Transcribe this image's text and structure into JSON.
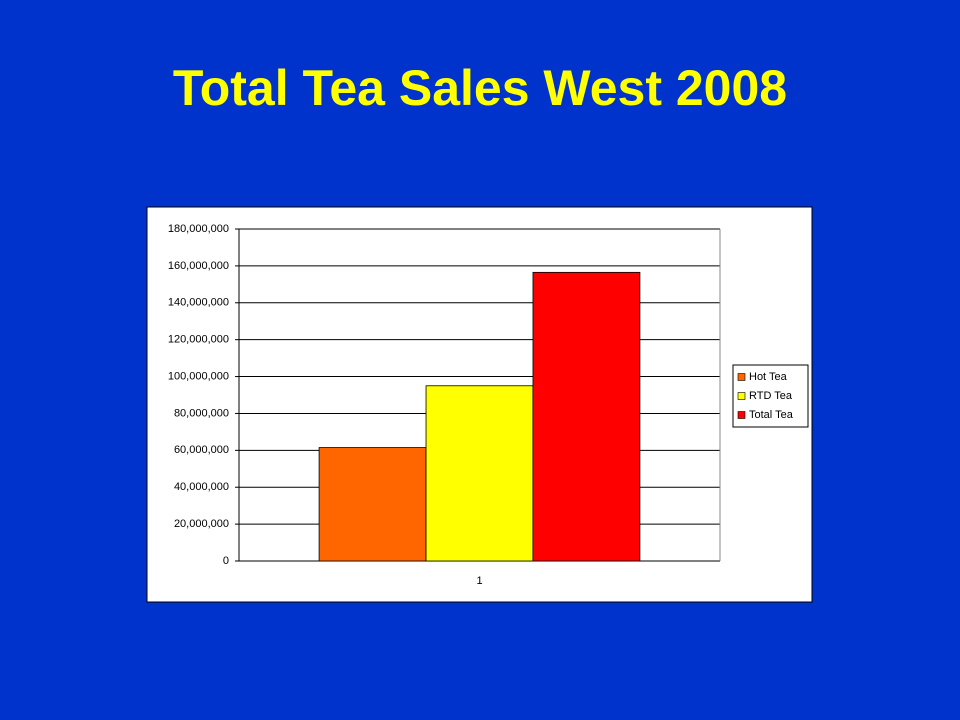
{
  "chart_data": {
    "type": "bar",
    "title": "Total Tea Sales West 2008",
    "categories": [
      "1"
    ],
    "series": [
      {
        "name": "Hot Tea",
        "color": "#ff6600",
        "values": [
          61500000
        ]
      },
      {
        "name": "RTD Tea",
        "color": "#ffff00",
        "values": [
          95000000
        ]
      },
      {
        "name": "Total Tea",
        "color": "#ff0000",
        "values": [
          156500000
        ]
      }
    ],
    "ylim": [
      0,
      180000000
    ],
    "yticks": [
      0,
      {
        "value": 20000000,
        "label": "20,000,000"
      },
      {
        "value": 40000000,
        "label": "40,000,000"
      },
      {
        "value": 60000000,
        "label": "60,000,000"
      },
      {
        "value": 80000000,
        "label": "80,000,000"
      },
      {
        "value": 100000000,
        "label": "100,000,000"
      },
      {
        "value": 120000000,
        "label": "120,000,000"
      },
      {
        "value": 140000000,
        "label": "140,000,000"
      },
      {
        "value": 160000000,
        "label": "160,000,000"
      },
      {
        "value": 180000000,
        "label": "180,000,000"
      }
    ],
    "grid": true,
    "legend": "right"
  }
}
